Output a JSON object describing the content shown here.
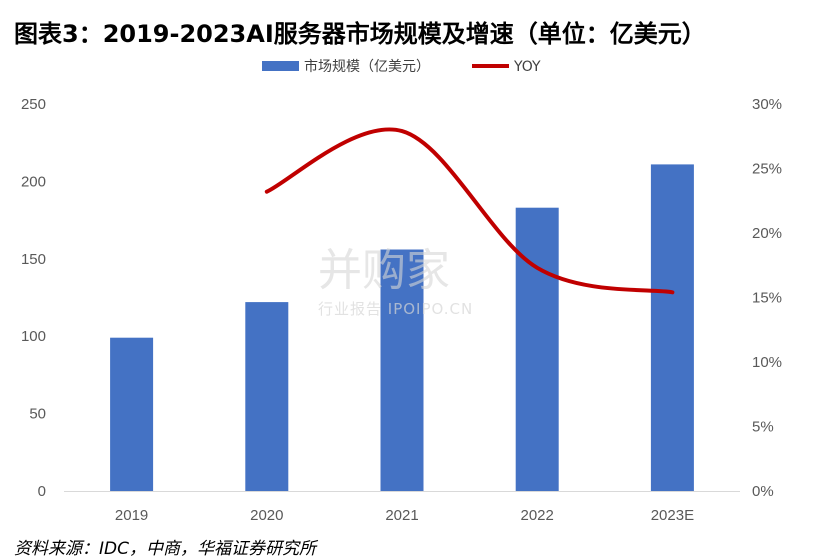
{
  "title": "图表3：2019-2023AI服务器市场规模及增速（单位：亿美元）",
  "source": "资料来源：IDC，中商，华福证券研究所",
  "watermark": {
    "main": "并购家",
    "sub": "行业报告 IPOIPO.CN"
  },
  "colors": {
    "bar": "#4472c4",
    "line": "#c00000",
    "axis": "#d9d9d9",
    "tick": "#595959"
  },
  "chart_data": {
    "type": "bar",
    "categories": [
      "2019",
      "2020",
      "2021",
      "2022",
      "2023E"
    ],
    "series": [
      {
        "name": "市场规模（亿美元）",
        "type": "bar",
        "axis": "left",
        "values": [
          99,
          122,
          156,
          183,
          211
        ]
      },
      {
        "name": "YOY",
        "type": "line",
        "axis": "right",
        "values": [
          null,
          23.2,
          27.9,
          17.3,
          15.4
        ]
      }
    ],
    "y_left": {
      "min": 0,
      "max": 250,
      "step": 50,
      "ticks": [
        "0",
        "50",
        "100",
        "150",
        "200",
        "250"
      ]
    },
    "y_right": {
      "min": 0,
      "max": 30,
      "step": 5,
      "ticks": [
        "0%",
        "5%",
        "10%",
        "15%",
        "20%",
        "25%",
        "30%"
      ]
    },
    "legend_position": "top-center",
    "grid": false
  }
}
